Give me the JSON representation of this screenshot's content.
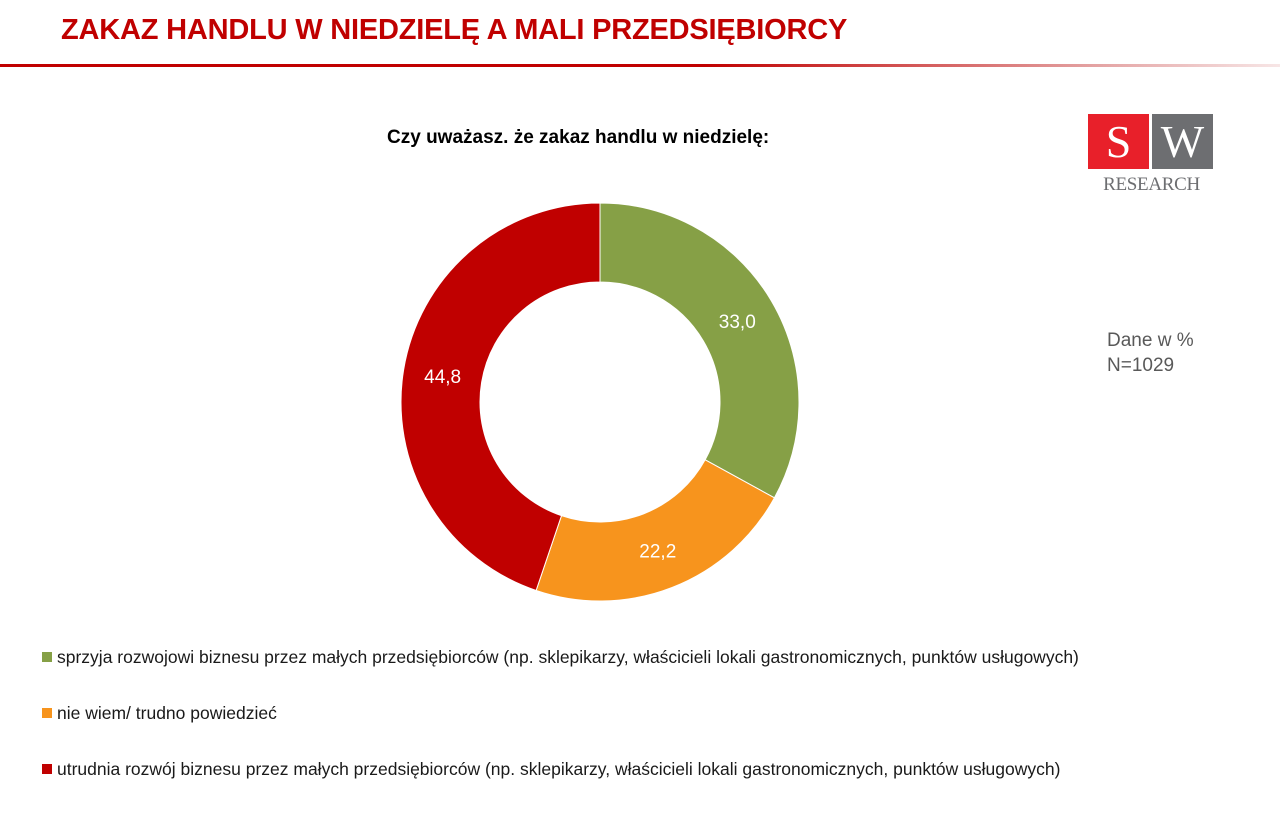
{
  "header": {
    "title": "ZAKAZ HANDLU W NIEDZIELĘ A MALI PRZEDSIĘBIORCY"
  },
  "logo": {
    "letter_left": "S",
    "letter_right": "W",
    "caption": "RESEARCH",
    "colors": {
      "left": "#e8202a",
      "right": "#6d6e71"
    }
  },
  "note": {
    "line1": "Dane w %",
    "line2": "N=1029"
  },
  "chart_data": {
    "type": "pie",
    "variant": "donut",
    "title": "Czy uważasz. że zakaz handlu w niedzielę:",
    "start": "top",
    "direction": "clockwise",
    "slices": [
      {
        "name": "sprzyja rozwojowi biznesu przez małych przedsiębiorców (np. sklepikarzy, właścicieli lokali gastronomicznych, punktów usługowych)",
        "value": 33.0,
        "label": "33,0",
        "color": "#86a046"
      },
      {
        "name": "nie wiem/ trudno powiedzieć",
        "value": 22.2,
        "label": "22,2",
        "color": "#f7941d"
      },
      {
        "name": "utrudnia rozwój biznesu przez małych przedsiębiorców (np. sklepikarzy, właścicieli lokali gastronomicznych, punktów usługowych)",
        "value": 44.8,
        "label": "44,8",
        "color": "#c00000"
      }
    ],
    "legend_position": "bottom"
  }
}
